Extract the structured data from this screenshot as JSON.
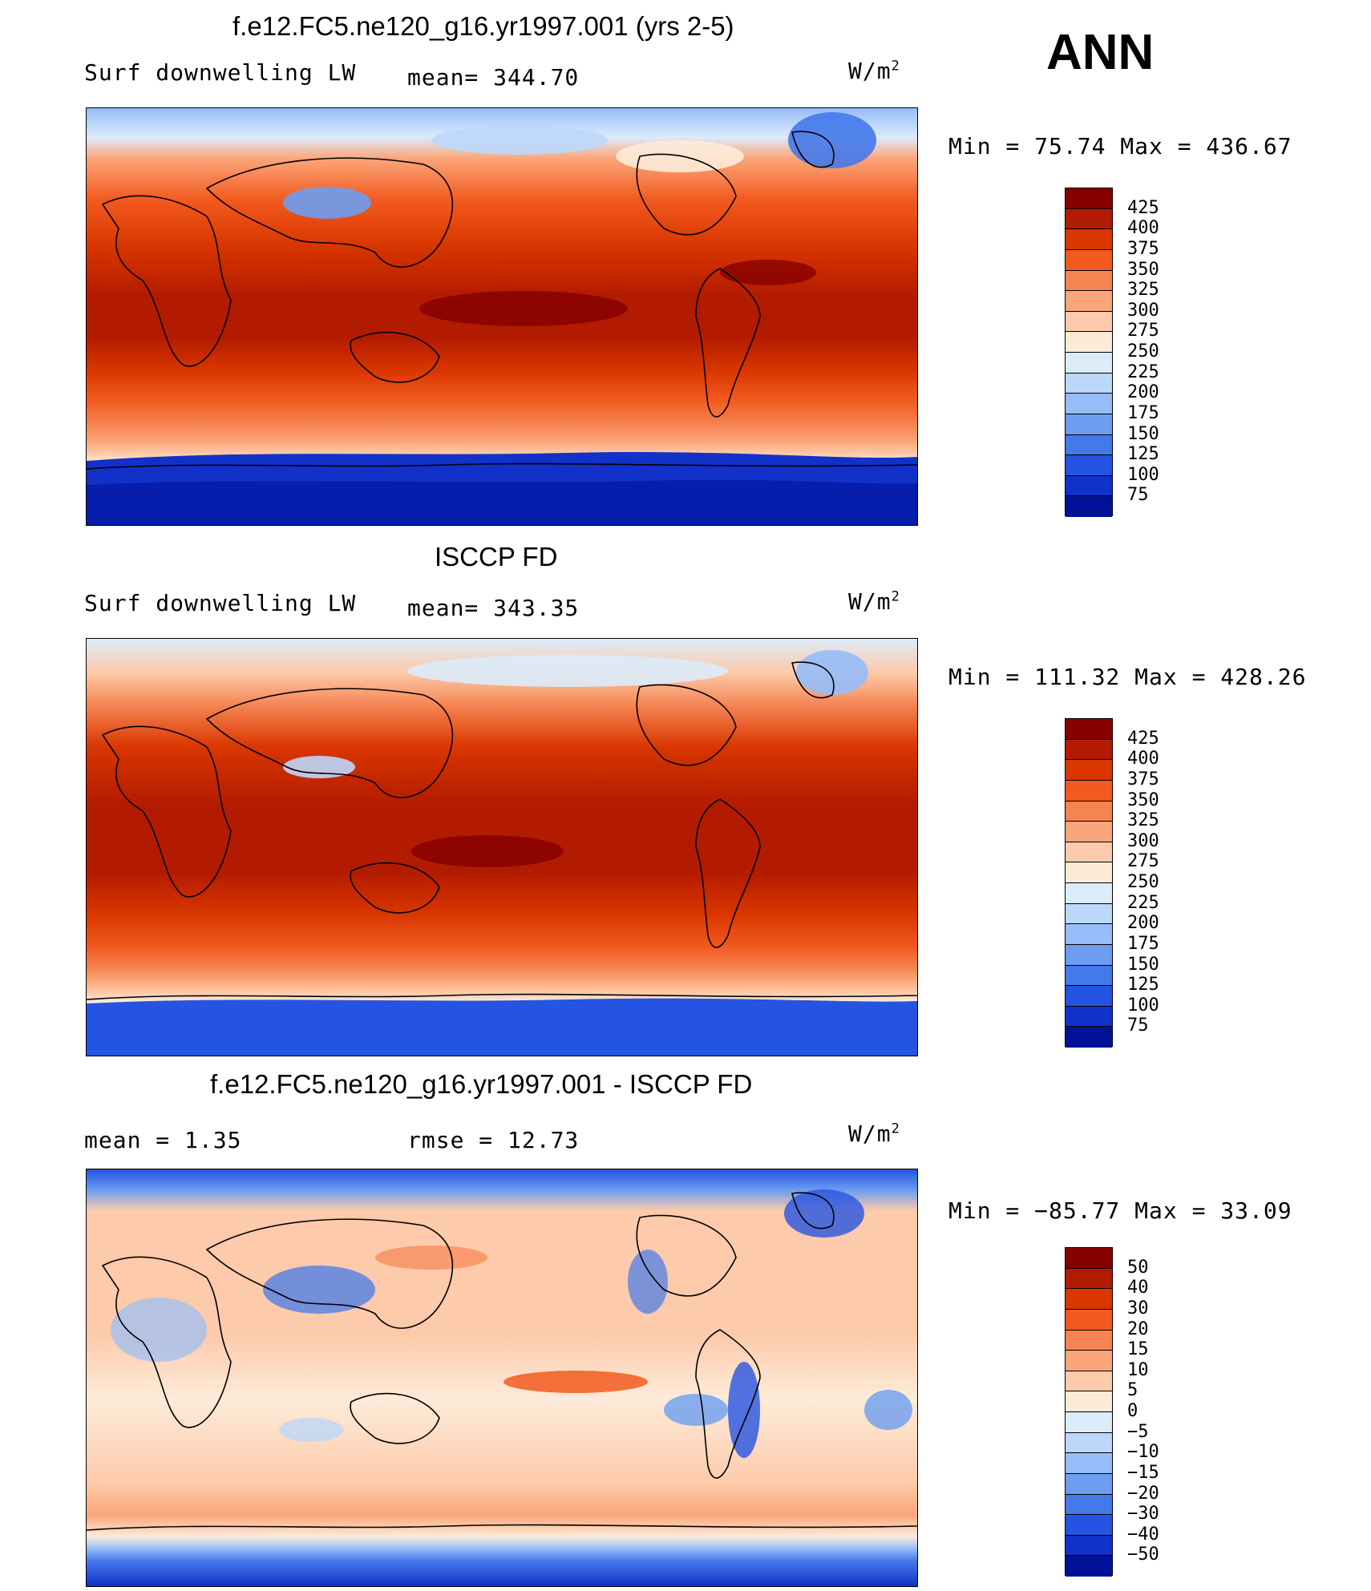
{
  "season": "ANN",
  "panels": [
    {
      "id": "model",
      "title": "f.e12.FC5.ne120_g16.yr1997.001 (yrs 2-5)",
      "left_label": "Surf downwelling LW",
      "center_label": "mean= 344.70",
      "units": "W/m",
      "units_sup": "2",
      "minmax": "Min =   75.74 Max = 436.67",
      "colorbar_levels": [
        "425",
        "400",
        "375",
        "350",
        "325",
        "300",
        "275",
        "250",
        "225",
        "200",
        "175",
        "150",
        "125",
        "100",
        "75"
      ],
      "colorbar_colors": [
        "#870000",
        "#b31b00",
        "#d93600",
        "#f25a1f",
        "#f58452",
        "#fba67a",
        "#fdcbab",
        "#fdebd9",
        "#dcebfa",
        "#bcd7f9",
        "#96bdf8",
        "#6d9df0",
        "#4479ea",
        "#2554e2",
        "#1131c8",
        "#001398"
      ]
    },
    {
      "id": "obs",
      "title": "ISCCP FD",
      "left_label": "Surf downwelling LW",
      "center_label": "mean= 343.35",
      "units": "W/m",
      "units_sup": "2",
      "minmax": "Min = 111.32 Max = 428.26",
      "colorbar_levels": [
        "425",
        "400",
        "375",
        "350",
        "325",
        "300",
        "275",
        "250",
        "225",
        "200",
        "175",
        "150",
        "125",
        "100",
        "75"
      ],
      "colorbar_colors": [
        "#870000",
        "#b31b00",
        "#d93600",
        "#f25a1f",
        "#f58452",
        "#fba67a",
        "#fdcbab",
        "#fdebd9",
        "#dcebfa",
        "#bcd7f9",
        "#96bdf8",
        "#6d9df0",
        "#4479ea",
        "#2554e2",
        "#1131c8",
        "#001398"
      ]
    },
    {
      "id": "diff",
      "title": "f.e12.FC5.ne120_g16.yr1997.001 - ISCCP FD",
      "left_label": "mean =    1.35",
      "center_label": "rmse =   12.73",
      "units": "W/m",
      "units_sup": "2",
      "minmax": "Min = −85.77 Max =   33.09",
      "colorbar_levels": [
        "50",
        "40",
        "30",
        "20",
        "15",
        "10",
        "5",
        "0",
        "−5",
        "−10",
        "−15",
        "−20",
        "−30",
        "−40",
        "−50"
      ],
      "colorbar_colors": [
        "#870000",
        "#b31b00",
        "#d93600",
        "#f25a1f",
        "#f58452",
        "#fba67a",
        "#fdcbab",
        "#fdebd9",
        "#dcebfa",
        "#bcd7f9",
        "#96bdf8",
        "#6d9df0",
        "#4479ea",
        "#2554e2",
        "#1131c8",
        "#001398"
      ]
    }
  ]
}
